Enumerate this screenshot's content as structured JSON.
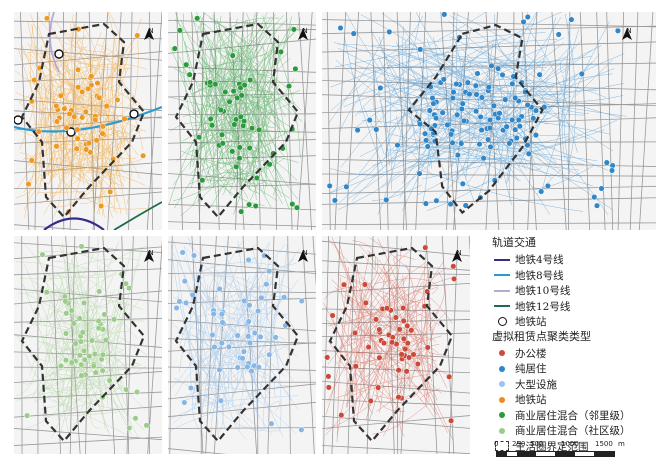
{
  "map": {
    "north_label": "N",
    "panels": [
      {
        "id": "metro-station",
        "color": "#ee9a22",
        "density": "high",
        "show_metro": true
      },
      {
        "id": "mixed-neighborhood",
        "color": "#2a9a3a",
        "density": "high",
        "show_metro": false
      },
      {
        "id": "residential",
        "color": "#2f86c8",
        "density": "high",
        "show_metro": false
      },
      {
        "id": "mixed-community",
        "color": "#9ccc8a",
        "density": "medium",
        "show_metro": false
      },
      {
        "id": "large-facility",
        "color": "#86b6e6",
        "density": "medium",
        "show_metro": false
      },
      {
        "id": "office",
        "color": "#cc4a3a",
        "density": "medium",
        "show_metro": false
      }
    ]
  },
  "legend": {
    "rail_heading": "轨道交通",
    "rail_items": [
      {
        "label": "地铁4号线",
        "color": "#3a2a8a",
        "icon": "line"
      },
      {
        "label": "地铁8号线",
        "color": "#2a9ad0",
        "icon": "line"
      },
      {
        "label": "地铁10号线",
        "color": "#b8a8d8",
        "icon": "line"
      },
      {
        "label": "地铁12号线",
        "color": "#1e6a4a",
        "icon": "line"
      }
    ],
    "station_label": "地铁站",
    "cluster_heading": "虚拟租赁点聚类类型",
    "cluster_items": [
      {
        "label": "办公楼",
        "color": "#cc4a3a"
      },
      {
        "label": "纯居住",
        "color": "#2f86c8"
      },
      {
        "label": "大型设施",
        "color": "#9cc4ec"
      },
      {
        "label": "地铁站",
        "color": "#ee8a22"
      },
      {
        "label": "商业居住混合（邻里级）",
        "color": "#2a9a3a"
      },
      {
        "label": "商业居住混合（社区级）",
        "color": "#9ccc8a"
      }
    ],
    "boundary_label": "生活圈界定范围"
  },
  "scale": {
    "ticks": [
      "0",
      "250",
      "500",
      "1000",
      "1500"
    ],
    "unit": "m"
  }
}
